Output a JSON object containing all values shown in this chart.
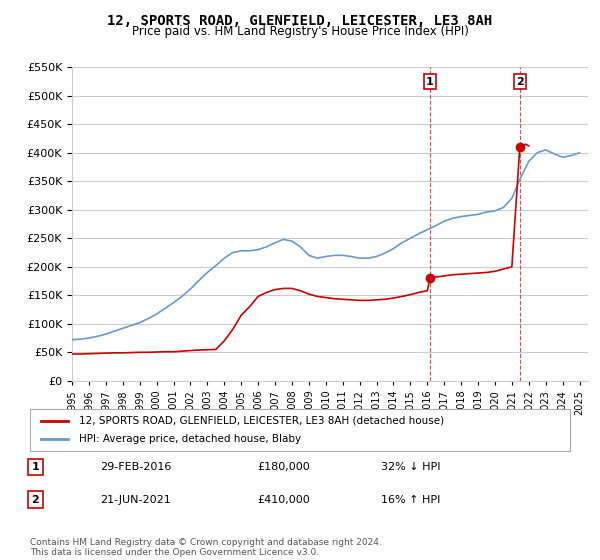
{
  "title": "12, SPORTS ROAD, GLENFIELD, LEICESTER, LE3 8AH",
  "subtitle": "Price paid vs. HM Land Registry's House Price Index (HPI)",
  "legend_line1": "12, SPORTS ROAD, GLENFIELD, LEICESTER, LE3 8AH (detached house)",
  "legend_line2": "HPI: Average price, detached house, Blaby",
  "annotation1_label": "1",
  "annotation1_date": "29-FEB-2016",
  "annotation1_price": "£180,000",
  "annotation1_hpi": "32% ↓ HPI",
  "annotation2_label": "2",
  "annotation2_date": "21-JUN-2021",
  "annotation2_price": "£410,000",
  "annotation2_hpi": "16% ↑ HPI",
  "copyright": "Contains HM Land Registry data © Crown copyright and database right 2024.\nThis data is licensed under the Open Government Licence v3.0.",
  "red_color": "#cc0000",
  "blue_color": "#6699cc",
  "background_color": "#ffffff",
  "grid_color": "#cccccc",
  "ylim": [
    0,
    550000
  ],
  "yticks": [
    0,
    50000,
    100000,
    150000,
    200000,
    250000,
    300000,
    350000,
    400000,
    450000,
    500000,
    550000
  ],
  "xlim_start": 1995.0,
  "xlim_end": 2025.5,
  "marker1_x": 2016.16,
  "marker1_y_red": 180000,
  "marker2_x": 2021.47,
  "marker2_y_red": 410000,
  "hpi_x": [
    1995,
    1995.5,
    1996,
    1996.5,
    1997,
    1997.5,
    1998,
    1998.5,
    1999,
    1999.5,
    2000,
    2000.5,
    2001,
    2001.5,
    2002,
    2002.5,
    2003,
    2003.5,
    2004,
    2004.5,
    2005,
    2005.5,
    2006,
    2006.5,
    2007,
    2007.5,
    2008,
    2008.5,
    2009,
    2009.5,
    2010,
    2010.5,
    2011,
    2011.5,
    2012,
    2012.5,
    2013,
    2013.5,
    2014,
    2014.5,
    2015,
    2015.5,
    2016,
    2016.5,
    2017,
    2017.5,
    2018,
    2018.5,
    2019,
    2019.5,
    2020,
    2020.5,
    2021,
    2021.5,
    2022,
    2022.5,
    2023,
    2023.5,
    2024,
    2024.5,
    2025
  ],
  "hpi_y": [
    72000,
    73000,
    75000,
    78000,
    82000,
    87000,
    92000,
    97000,
    102000,
    109000,
    117000,
    127000,
    137000,
    148000,
    161000,
    176000,
    190000,
    202000,
    215000,
    225000,
    228000,
    228000,
    230000,
    235000,
    242000,
    248000,
    245000,
    235000,
    220000,
    215000,
    218000,
    220000,
    220000,
    218000,
    215000,
    215000,
    218000,
    224000,
    232000,
    242000,
    250000,
    258000,
    265000,
    272000,
    280000,
    285000,
    288000,
    290000,
    292000,
    296000,
    298000,
    304000,
    320000,
    355000,
    385000,
    400000,
    405000,
    398000,
    392000,
    395000,
    400000
  ],
  "red_x": [
    1995.5,
    1999.5,
    2003.5,
    2005.0,
    2006.5,
    2007.5,
    2009.5,
    2011.0,
    2016.16,
    2021.47
  ],
  "red_y": [
    47000,
    50000,
    55000,
    115000,
    155000,
    162000,
    148000,
    140000,
    180000,
    410000
  ]
}
